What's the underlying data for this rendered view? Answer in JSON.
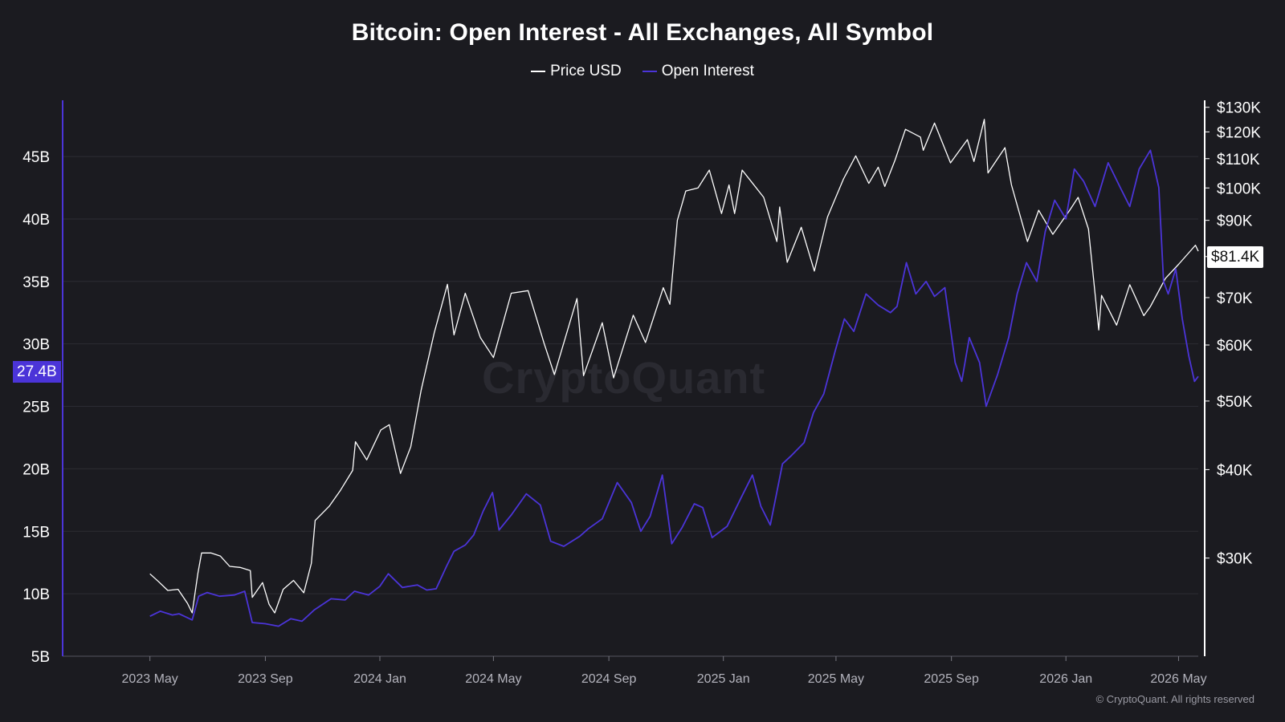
{
  "title": "Bitcoin: Open Interest - All Exchanges, All Symbol",
  "legend": {
    "items": [
      {
        "label": "Price USD",
        "color": "#ffffff"
      },
      {
        "label": "Open Interest",
        "color": "#4b34d8"
      }
    ]
  },
  "current_values": {
    "open_interest_label": "27.4B",
    "price_label": "$81.4K"
  },
  "watermark": "CryptoQuant",
  "credit": "© CryptoQuant. All rights reserved",
  "chart_data": {
    "type": "line",
    "title": "Bitcoin: Open Interest - All Exchanges, All Symbol",
    "x_tick_labels": [
      "2023 May",
      "2023 Sep",
      "2024 Jan",
      "2024 May",
      "2024 Sep",
      "2025 Jan",
      "2025 May",
      "2025 Sep",
      "2026 Jan",
      "2026 May"
    ],
    "x_range": [
      "2023-01-28",
      "2026-05-22"
    ],
    "y_left": {
      "tick_labels": [
        "5B",
        "10B",
        "15B",
        "20B",
        "25B",
        "30B",
        "35B",
        "40B",
        "45B"
      ],
      "ticks": [
        5,
        10,
        15,
        20,
        25,
        30,
        35,
        40,
        45
      ],
      "range": [
        5,
        49.5
      ],
      "unit": "billion USD"
    },
    "y_right": {
      "scale": "log",
      "tick_labels": [
        "$30K",
        "$40K",
        "$50K",
        "$60K",
        "$70K",
        "$80K",
        "$90K",
        "$100K",
        "$110K",
        "$120K",
        "$130K"
      ],
      "ticks": [
        30000,
        40000,
        50000,
        60000,
        70000,
        80000,
        90000,
        100000,
        110000,
        120000,
        130000
      ],
      "range": [
        21800,
        133000
      ]
    },
    "grid": true,
    "legend_position": "top-center",
    "series": [
      {
        "name": "Price USD",
        "axis": "right",
        "color": "#ffffff",
        "points": [
          [
            "2023-05-01",
            28500
          ],
          [
            "2023-05-10",
            27800
          ],
          [
            "2023-05-20",
            27000
          ],
          [
            "2023-05-31",
            27100
          ],
          [
            "2023-06-10",
            25900
          ],
          [
            "2023-06-15",
            25100
          ],
          [
            "2023-06-21",
            28500
          ],
          [
            "2023-06-25",
            30500
          ],
          [
            "2023-07-05",
            30500
          ],
          [
            "2023-07-15",
            30200
          ],
          [
            "2023-07-25",
            29200
          ],
          [
            "2023-08-05",
            29100
          ],
          [
            "2023-08-16",
            28800
          ],
          [
            "2023-08-18",
            26400
          ],
          [
            "2023-08-29",
            27700
          ],
          [
            "2023-09-05",
            25800
          ],
          [
            "2023-09-11",
            25100
          ],
          [
            "2023-09-20",
            27100
          ],
          [
            "2023-10-01",
            27900
          ],
          [
            "2023-10-12",
            26800
          ],
          [
            "2023-10-20",
            29500
          ],
          [
            "2023-10-24",
            33900
          ],
          [
            "2023-11-08",
            35500
          ],
          [
            "2023-11-20",
            37400
          ],
          [
            "2023-12-03",
            39900
          ],
          [
            "2023-12-06",
            43800
          ],
          [
            "2023-12-18",
            41300
          ],
          [
            "2024-01-02",
            45500
          ],
          [
            "2024-01-11",
            46300
          ],
          [
            "2024-01-23",
            39500
          ],
          [
            "2024-02-03",
            43100
          ],
          [
            "2024-02-14",
            51800
          ],
          [
            "2024-02-28",
            62500
          ],
          [
            "2024-03-13",
            73100
          ],
          [
            "2024-03-20",
            62000
          ],
          [
            "2024-04-01",
            71000
          ],
          [
            "2024-04-17",
            61500
          ],
          [
            "2024-05-01",
            57600
          ],
          [
            "2024-05-20",
            71000
          ],
          [
            "2024-06-07",
            71600
          ],
          [
            "2024-06-24",
            60300
          ],
          [
            "2024-07-05",
            54500
          ],
          [
            "2024-07-29",
            69800
          ],
          [
            "2024-08-05",
            54300
          ],
          [
            "2024-08-25",
            64500
          ],
          [
            "2024-09-06",
            53900
          ],
          [
            "2024-09-27",
            66100
          ],
          [
            "2024-10-10",
            60500
          ],
          [
            "2024-10-29",
            72300
          ],
          [
            "2024-11-05",
            68500
          ],
          [
            "2024-11-13",
            90000
          ],
          [
            "2024-11-22",
            99000
          ],
          [
            "2024-12-05",
            100000
          ],
          [
            "2024-12-17",
            106000
          ],
          [
            "2024-12-30",
            92000
          ],
          [
            "2025-01-07",
            101000
          ],
          [
            "2025-01-13",
            92000
          ],
          [
            "2025-01-21",
            106000
          ],
          [
            "2025-01-31",
            102000
          ],
          [
            "2025-02-13",
            97000
          ],
          [
            "2025-02-27",
            84000
          ],
          [
            "2025-03-02",
            94000
          ],
          [
            "2025-03-10",
            78500
          ],
          [
            "2025-03-25",
            88000
          ],
          [
            "2025-04-08",
            76300
          ],
          [
            "2025-04-22",
            91000
          ],
          [
            "2025-05-09",
            103000
          ],
          [
            "2025-05-22",
            111000
          ],
          [
            "2025-06-05",
            101500
          ],
          [
            "2025-06-15",
            107000
          ],
          [
            "2025-06-22",
            100500
          ],
          [
            "2025-07-03",
            109500
          ],
          [
            "2025-07-14",
            121000
          ],
          [
            "2025-07-30",
            118000
          ],
          [
            "2025-08-02",
            113000
          ],
          [
            "2025-08-14",
            123500
          ],
          [
            "2025-08-31",
            108500
          ],
          [
            "2025-09-18",
            117000
          ],
          [
            "2025-09-25",
            109000
          ],
          [
            "2025-10-06",
            125000
          ],
          [
            "2025-10-10",
            105000
          ],
          [
            "2025-10-28",
            114000
          ],
          [
            "2025-11-04",
            101000
          ],
          [
            "2025-11-21",
            84000
          ],
          [
            "2025-12-03",
            93000
          ],
          [
            "2025-12-18",
            86000
          ],
          [
            "2026-01-05",
            93000
          ],
          [
            "2026-01-14",
            97000
          ],
          [
            "2026-01-25",
            87500
          ],
          [
            "2026-02-05",
            63000
          ],
          [
            "2026-02-08",
            70500
          ],
          [
            "2026-02-24",
            64000
          ],
          [
            "2026-03-10",
            73000
          ],
          [
            "2026-03-25",
            66000
          ],
          [
            "2026-04-01",
            68000
          ],
          [
            "2026-04-17",
            74500
          ],
          [
            "2026-05-01",
            78000
          ],
          [
            "2026-05-12",
            81000
          ],
          [
            "2026-05-19",
            83000
          ],
          [
            "2026-05-22",
            81400
          ]
        ]
      },
      {
        "name": "Open Interest",
        "axis": "left",
        "color": "#4b34d8",
        "points": [
          [
            "2023-05-01",
            8.2
          ],
          [
            "2023-05-12",
            8.6
          ],
          [
            "2023-05-25",
            8.3
          ],
          [
            "2023-06-01",
            8.4
          ],
          [
            "2023-06-15",
            7.9
          ],
          [
            "2023-06-22",
            9.8
          ],
          [
            "2023-07-01",
            10.1
          ],
          [
            "2023-07-14",
            9.8
          ],
          [
            "2023-07-30",
            9.9
          ],
          [
            "2023-08-10",
            10.2
          ],
          [
            "2023-08-18",
            7.7
          ],
          [
            "2023-09-01",
            7.6
          ],
          [
            "2023-09-15",
            7.4
          ],
          [
            "2023-09-28",
            8.0
          ],
          [
            "2023-10-10",
            7.8
          ],
          [
            "2023-10-23",
            8.7
          ],
          [
            "2023-11-10",
            9.6
          ],
          [
            "2023-11-25",
            9.5
          ],
          [
            "2023-12-05",
            10.2
          ],
          [
            "2023-12-20",
            9.9
          ],
          [
            "2024-01-01",
            10.6
          ],
          [
            "2024-01-10",
            11.6
          ],
          [
            "2024-01-25",
            10.5
          ],
          [
            "2024-02-10",
            10.7
          ],
          [
            "2024-02-20",
            10.3
          ],
          [
            "2024-03-01",
            10.4
          ],
          [
            "2024-03-12",
            12.2
          ],
          [
            "2024-03-20",
            13.4
          ],
          [
            "2024-04-01",
            13.9
          ],
          [
            "2024-04-10",
            14.7
          ],
          [
            "2024-04-20",
            16.6
          ],
          [
            "2024-04-30",
            18.1
          ],
          [
            "2024-05-07",
            15.1
          ],
          [
            "2024-05-20",
            16.3
          ],
          [
            "2024-06-05",
            18.0
          ],
          [
            "2024-06-20",
            17.1
          ],
          [
            "2024-07-01",
            14.2
          ],
          [
            "2024-07-15",
            13.8
          ],
          [
            "2024-08-01",
            14.6
          ],
          [
            "2024-08-10",
            15.2
          ],
          [
            "2024-08-25",
            16.0
          ],
          [
            "2024-09-10",
            18.9
          ],
          [
            "2024-09-25",
            17.3
          ],
          [
            "2024-10-05",
            15.0
          ],
          [
            "2024-10-15",
            16.2
          ],
          [
            "2024-10-28",
            19.5
          ],
          [
            "2024-11-07",
            14.0
          ],
          [
            "2024-11-18",
            15.3
          ],
          [
            "2024-12-01",
            17.2
          ],
          [
            "2024-12-10",
            16.9
          ],
          [
            "2024-12-20",
            14.5
          ],
          [
            "2025-01-05",
            15.4
          ],
          [
            "2025-01-20",
            17.7
          ],
          [
            "2025-02-01",
            19.5
          ],
          [
            "2025-02-10",
            17.0
          ],
          [
            "2025-02-20",
            15.5
          ],
          [
            "2025-03-05",
            20.4
          ],
          [
            "2025-03-15",
            21.1
          ],
          [
            "2025-03-28",
            22.1
          ],
          [
            "2025-04-07",
            24.5
          ],
          [
            "2025-04-18",
            26.0
          ],
          [
            "2025-04-30",
            29.4
          ],
          [
            "2025-05-10",
            32.0
          ],
          [
            "2025-05-20",
            31.0
          ],
          [
            "2025-06-02",
            34.0
          ],
          [
            "2025-06-15",
            33.1
          ],
          [
            "2025-06-28",
            32.5
          ],
          [
            "2025-07-05",
            33.0
          ],
          [
            "2025-07-15",
            36.5
          ],
          [
            "2025-07-25",
            34.0
          ],
          [
            "2025-08-05",
            35.0
          ],
          [
            "2025-08-14",
            33.8
          ],
          [
            "2025-08-25",
            34.5
          ],
          [
            "2025-09-05",
            28.5
          ],
          [
            "2025-09-12",
            27.0
          ],
          [
            "2025-09-20",
            30.5
          ],
          [
            "2025-10-01",
            28.5
          ],
          [
            "2025-10-08",
            25.0
          ],
          [
            "2025-10-20",
            27.5
          ],
          [
            "2025-11-01",
            30.5
          ],
          [
            "2025-11-10",
            34.0
          ],
          [
            "2025-11-20",
            36.5
          ],
          [
            "2025-12-01",
            35.0
          ],
          [
            "2025-12-10",
            39.0
          ],
          [
            "2025-12-20",
            41.5
          ],
          [
            "2026-01-01",
            40.0
          ],
          [
            "2026-01-10",
            44.0
          ],
          [
            "2026-01-20",
            43.0
          ],
          [
            "2026-02-01",
            41.0
          ],
          [
            "2026-02-15",
            44.5
          ],
          [
            "2026-02-28",
            42.5
          ],
          [
            "2026-03-10",
            41.0
          ],
          [
            "2026-03-20",
            44.0
          ],
          [
            "2026-04-01",
            45.5
          ],
          [
            "2026-04-10",
            42.5
          ],
          [
            "2026-04-15",
            35.0
          ],
          [
            "2026-04-20",
            34.0
          ],
          [
            "2026-04-28",
            36.0
          ],
          [
            "2026-05-05",
            32.0
          ],
          [
            "2026-05-12",
            29.0
          ],
          [
            "2026-05-18",
            27.0
          ],
          [
            "2026-05-22",
            27.4
          ]
        ]
      }
    ]
  }
}
